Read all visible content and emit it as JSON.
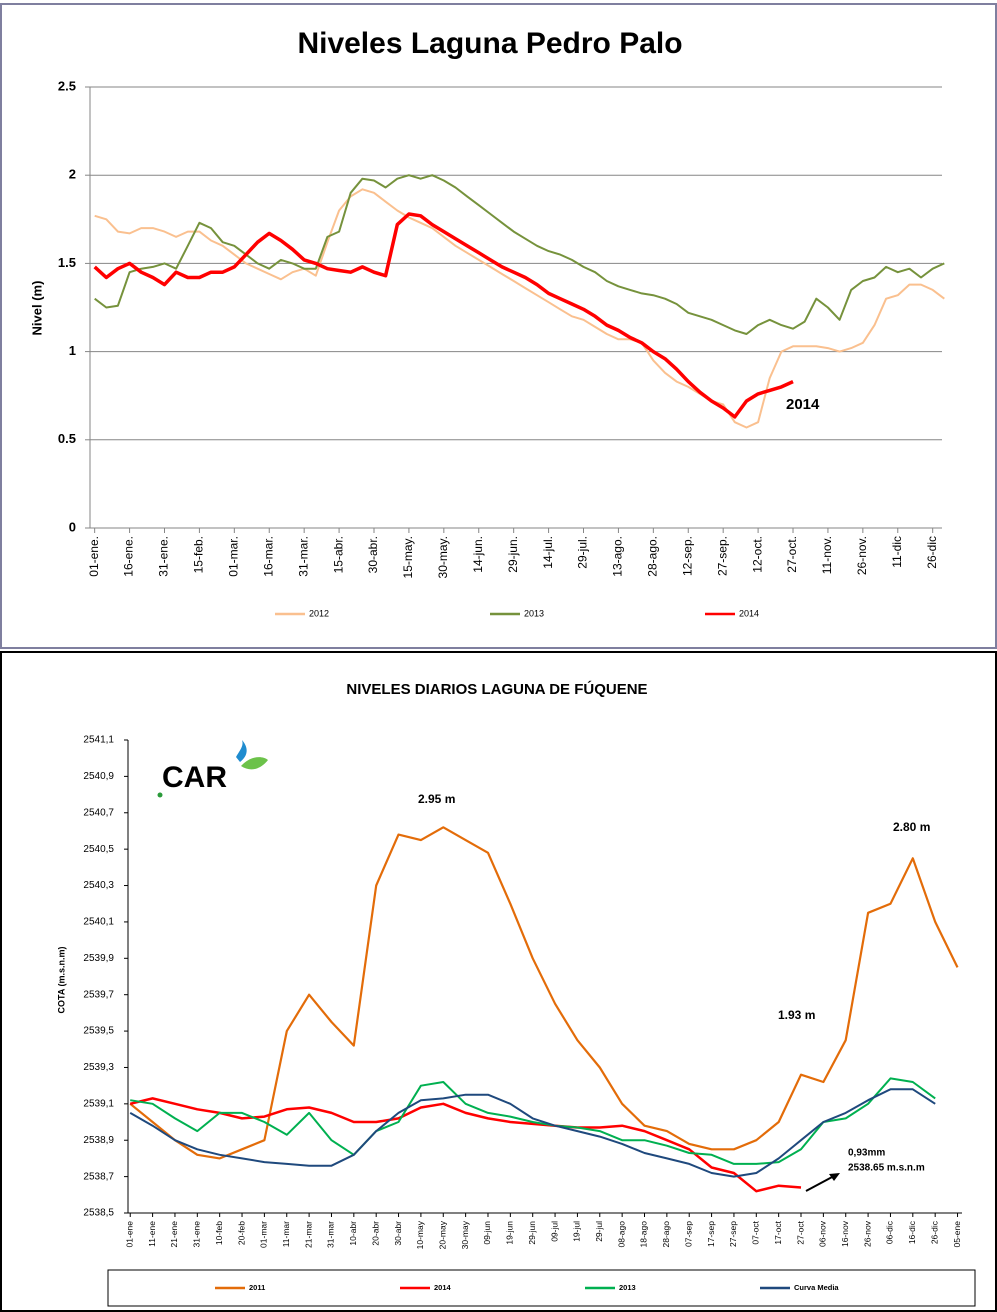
{
  "chart_data": [
    {
      "type": "line",
      "title": "Niveles Laguna Pedro Palo",
      "y_label": "Nivel (m)",
      "grid": true,
      "x": [
        0,
        5,
        10,
        15,
        20,
        25,
        30,
        35,
        40,
        45,
        50,
        55,
        60,
        65,
        70,
        75,
        80,
        85,
        90,
        95,
        100,
        105,
        110,
        115,
        120,
        125,
        130,
        135,
        140,
        145,
        150,
        155,
        160,
        165,
        170,
        175,
        180,
        185,
        190,
        195,
        200,
        205,
        210,
        215,
        220,
        225,
        230,
        235,
        240,
        245,
        250,
        255,
        260,
        265,
        270,
        275,
        280,
        285,
        290,
        295,
        300,
        305,
        310,
        315,
        320,
        325,
        330,
        335,
        340,
        345,
        350,
        355,
        360,
        365
      ],
      "xlim": [
        -2,
        364
      ],
      "xticks": [
        {
          "value": 0,
          "label": "01-ene."
        },
        {
          "value": 15,
          "label": "16-ene."
        },
        {
          "value": 30,
          "label": "31-ene."
        },
        {
          "value": 45,
          "label": "15-feb."
        },
        {
          "value": 60,
          "label": "01-mar."
        },
        {
          "value": 75,
          "label": "16-mar."
        },
        {
          "value": 90,
          "label": "31-mar."
        },
        {
          "value": 105,
          "label": "15-abr."
        },
        {
          "value": 120,
          "label": "30-abr."
        },
        {
          "value": 135,
          "label": "15-may."
        },
        {
          "value": 150,
          "label": "30-may."
        },
        {
          "value": 165,
          "label": "14-jun."
        },
        {
          "value": 180,
          "label": "29-jun."
        },
        {
          "value": 195,
          "label": "14-jul."
        },
        {
          "value": 210,
          "label": "29-jul."
        },
        {
          "value": 225,
          "label": "13-ago."
        },
        {
          "value": 240,
          "label": "28-ago."
        },
        {
          "value": 255,
          "label": "12-sep."
        },
        {
          "value": 270,
          "label": "27-sep."
        },
        {
          "value": 285,
          "label": "12-oct."
        },
        {
          "value": 300,
          "label": "27-oct."
        },
        {
          "value": 315,
          "label": "11-nov."
        },
        {
          "value": 330,
          "label": "26-nov."
        },
        {
          "value": 345,
          "label": "11-dic"
        },
        {
          "value": 360,
          "label": "26-dic"
        }
      ],
      "ylim": [
        0,
        2.5
      ],
      "yticks": [
        0,
        0.5,
        1,
        1.5,
        2,
        2.5
      ],
      "series": [
        {
          "name": "2012",
          "color": "#fac08f",
          "values": [
            1.77,
            1.75,
            1.68,
            1.67,
            1.7,
            1.7,
            1.68,
            1.65,
            1.68,
            1.68,
            1.63,
            1.6,
            1.55,
            1.5,
            1.47,
            1.44,
            1.41,
            1.45,
            1.47,
            1.43,
            1.62,
            1.8,
            1.88,
            1.92,
            1.9,
            1.85,
            1.8,
            1.76,
            1.73,
            1.7,
            1.65,
            1.6,
            1.56,
            1.52,
            1.48,
            1.44,
            1.4,
            1.36,
            1.32,
            1.28,
            1.24,
            1.2,
            1.18,
            1.14,
            1.1,
            1.07,
            1.07,
            1.05,
            0.95,
            0.88,
            0.83,
            0.8,
            0.76,
            0.72,
            0.7,
            0.6,
            0.57,
            0.6,
            0.85,
            1.0,
            1.03,
            1.03,
            1.03,
            1.02,
            1.0,
            1.02,
            1.05,
            1.15,
            1.3,
            1.32,
            1.38,
            1.38,
            1.35,
            1.3
          ]
        },
        {
          "name": "2013",
          "color": "#76923c",
          "values": [
            1.3,
            1.25,
            1.26,
            1.45,
            1.47,
            1.48,
            1.5,
            1.47,
            1.6,
            1.73,
            1.7,
            1.62,
            1.6,
            1.55,
            1.5,
            1.47,
            1.52,
            1.5,
            1.47,
            1.47,
            1.65,
            1.68,
            1.9,
            1.98,
            1.97,
            1.93,
            1.98,
            2.0,
            1.98,
            2.0,
            1.97,
            1.93,
            1.88,
            1.83,
            1.78,
            1.73,
            1.68,
            1.64,
            1.6,
            1.57,
            1.55,
            1.52,
            1.48,
            1.45,
            1.4,
            1.37,
            1.35,
            1.33,
            1.32,
            1.3,
            1.27,
            1.22,
            1.2,
            1.18,
            1.15,
            1.12,
            1.1,
            1.15,
            1.18,
            1.15,
            1.13,
            1.17,
            1.3,
            1.25,
            1.18,
            1.35,
            1.4,
            1.42,
            1.48,
            1.45,
            1.47,
            1.42,
            1.47,
            1.5
          ]
        },
        {
          "name": "2014",
          "color": "#ff0000",
          "values": [
            1.48,
            1.42,
            1.47,
            1.5,
            1.45,
            1.42,
            1.38,
            1.45,
            1.42,
            1.42,
            1.45,
            1.45,
            1.48,
            1.55,
            1.62,
            1.67,
            1.63,
            1.58,
            1.52,
            1.5,
            1.47,
            1.46,
            1.45,
            1.48,
            1.45,
            1.43,
            1.72,
            1.78,
            1.77,
            1.72,
            1.68,
            1.64,
            1.6,
            1.56,
            1.52,
            1.48,
            1.45,
            1.42,
            1.38,
            1.33,
            1.3,
            1.27,
            1.24,
            1.2,
            1.15,
            1.12,
            1.08,
            1.05,
            1.0,
            0.96,
            0.9,
            0.83,
            0.77,
            0.72,
            0.68,
            0.63,
            0.72,
            0.76,
            0.78,
            0.8,
            0.83,
            null,
            null,
            null,
            null,
            null,
            null,
            null,
            null,
            null,
            null,
            null,
            null,
            null
          ]
        }
      ],
      "annotations": [
        "2014"
      ]
    },
    {
      "type": "line",
      "title": "NIVELES DIARIOS LAGUNA DE FÚQUENE",
      "y_label": "COTA (m.s.n.m)",
      "grid": false,
      "logo": "CAR",
      "x": [
        0,
        10,
        20,
        30,
        40,
        50,
        60,
        70,
        80,
        90,
        100,
        110,
        120,
        130,
        140,
        150,
        160,
        170,
        180,
        190,
        200,
        210,
        220,
        230,
        240,
        250,
        260,
        270,
        280,
        290,
        300,
        310,
        320,
        330,
        340,
        350,
        360,
        370
      ],
      "xlim": [
        -1,
        372
      ],
      "xticks": [
        {
          "value": 0,
          "label": "01-ene"
        },
        {
          "value": 10,
          "label": "11-ene"
        },
        {
          "value": 20,
          "label": "21-ene"
        },
        {
          "value": 30,
          "label": "31-ene"
        },
        {
          "value": 40,
          "label": "10-feb"
        },
        {
          "value": 50,
          "label": "20-feb"
        },
        {
          "value": 60,
          "label": "01-mar"
        },
        {
          "value": 70,
          "label": "11-mar"
        },
        {
          "value": 80,
          "label": "21-mar"
        },
        {
          "value": 90,
          "label": "31-mar"
        },
        {
          "value": 100,
          "label": "10-abr"
        },
        {
          "value": 110,
          "label": "20-abr"
        },
        {
          "value": 120,
          "label": "30-abr"
        },
        {
          "value": 130,
          "label": "10-may"
        },
        {
          "value": 140,
          "label": "20-may"
        },
        {
          "value": 150,
          "label": "30-may"
        },
        {
          "value": 160,
          "label": "09-jun"
        },
        {
          "value": 170,
          "label": "19-jun"
        },
        {
          "value": 180,
          "label": "29-jun"
        },
        {
          "value": 190,
          "label": "09-jul"
        },
        {
          "value": 200,
          "label": "19-jul"
        },
        {
          "value": 210,
          "label": "29-jul"
        },
        {
          "value": 220,
          "label": "08-ago"
        },
        {
          "value": 230,
          "label": "18-ago"
        },
        {
          "value": 240,
          "label": "28-ago"
        },
        {
          "value": 250,
          "label": "07-sep"
        },
        {
          "value": 260,
          "label": "17-sep"
        },
        {
          "value": 270,
          "label": "27-sep"
        },
        {
          "value": 280,
          "label": "07-oct"
        },
        {
          "value": 290,
          "label": "17-oct"
        },
        {
          "value": 300,
          "label": "27-oct"
        },
        {
          "value": 310,
          "label": "06-nov"
        },
        {
          "value": 320,
          "label": "16-nov"
        },
        {
          "value": 330,
          "label": "26-nov"
        },
        {
          "value": 340,
          "label": "06-dic"
        },
        {
          "value": 350,
          "label": "16-dic"
        },
        {
          "value": 360,
          "label": "26-dic"
        },
        {
          "value": 370,
          "label": "05-ene"
        }
      ],
      "ylim": [
        2538.5,
        2541.1
      ],
      "yticks": [
        {
          "value": 2538.5,
          "label": "2538,5"
        },
        {
          "value": 2538.7,
          "label": "2538,7"
        },
        {
          "value": 2538.9,
          "label": "2538,9"
        },
        {
          "value": 2539.1,
          "label": "2539,1"
        },
        {
          "value": 2539.3,
          "label": "2539,3"
        },
        {
          "value": 2539.5,
          "label": "2539,5"
        },
        {
          "value": 2539.7,
          "label": "2539,7"
        },
        {
          "value": 2539.9,
          "label": "2539,9"
        },
        {
          "value": 2540.1,
          "label": "2540,1"
        },
        {
          "value": 2540.3,
          "label": "2540,3"
        },
        {
          "value": 2540.5,
          "label": "2540,5"
        },
        {
          "value": 2540.7,
          "label": "2540,7"
        },
        {
          "value": 2540.9,
          "label": "2540,9"
        },
        {
          "value": 2541.1,
          "label": "2541,1"
        }
      ],
      "series": [
        {
          "name": "2011",
          "color": "#e36c09",
          "values": [
            2539.1,
            2539.0,
            2538.9,
            2538.82,
            2538.8,
            2538.85,
            2538.9,
            2539.5,
            2539.7,
            2539.55,
            2539.42,
            2540.3,
            2540.58,
            2540.55,
            2540.62,
            2540.55,
            2540.48,
            2540.2,
            2539.9,
            2539.65,
            2539.45,
            2539.3,
            2539.1,
            2538.98,
            2538.95,
            2538.88,
            2538.85,
            2538.85,
            2538.9,
            2539.0,
            2539.26,
            2539.22,
            2539.45,
            2540.15,
            2540.2,
            2540.45,
            2540.1,
            2539.85
          ]
        },
        {
          "name": "2014",
          "color": "#ff0000",
          "values": [
            2539.1,
            2539.13,
            2539.1,
            2539.07,
            2539.05,
            2539.02,
            2539.03,
            2539.07,
            2539.08,
            2539.05,
            2539.0,
            2539.0,
            2539.02,
            2539.08,
            2539.1,
            2539.05,
            2539.02,
            2539.0,
            2538.99,
            2538.98,
            2538.97,
            2538.97,
            2538.98,
            2538.95,
            2538.9,
            2538.85,
            2538.75,
            2538.72,
            2538.62,
            2538.65,
            2538.64,
            null,
            null,
            null,
            null,
            null,
            null,
            null
          ]
        },
        {
          "name": "2013",
          "color": "#00b050",
          "values": [
            2539.12,
            2539.1,
            2539.02,
            2538.95,
            2539.05,
            2539.05,
            2539.0,
            2538.93,
            2539.05,
            2538.9,
            2538.82,
            2538.95,
            2539.0,
            2539.2,
            2539.22,
            2539.1,
            2539.05,
            2539.03,
            2539.0,
            2538.98,
            2538.97,
            2538.95,
            2538.9,
            2538.9,
            2538.87,
            2538.83,
            2538.82,
            2538.77,
            2538.77,
            2538.78,
            2538.85,
            2539.0,
            2539.02,
            2539.1,
            2539.24,
            2539.22,
            2539.13,
            null
          ]
        },
        {
          "name": "Curva Media",
          "color": "#1f497d",
          "values": [
            2539.05,
            2538.98,
            2538.9,
            2538.85,
            2538.82,
            2538.8,
            2538.78,
            2538.77,
            2538.76,
            2538.76,
            2538.82,
            2538.95,
            2539.05,
            2539.12,
            2539.13,
            2539.15,
            2539.15,
            2539.1,
            2539.02,
            2538.98,
            2538.95,
            2538.92,
            2538.88,
            2538.83,
            2538.8,
            2538.77,
            2538.72,
            2538.7,
            2538.72,
            2538.8,
            2538.9,
            2539.0,
            2539.05,
            2539.12,
            2539.18,
            2539.18,
            2539.1,
            null
          ]
        }
      ],
      "annotations": [
        "2.95 m",
        "1.93 m",
        "2.80 m",
        "0,93mm",
        "2538.65 m.s.n.m"
      ]
    }
  ]
}
